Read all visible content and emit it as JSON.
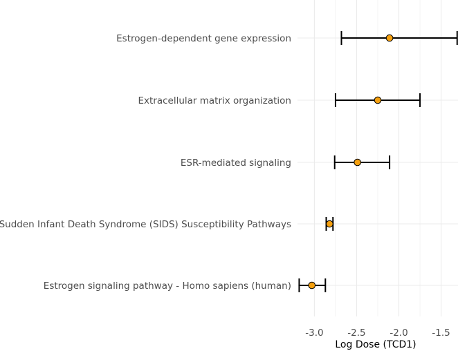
{
  "chart_data": {
    "type": "forest",
    "xlabel": "Log Dose (TCD1)",
    "ylabel": "",
    "title": "",
    "xlim": [
      -3.2,
      -1.3
    ],
    "xticks": [
      -3.0,
      -2.5,
      -2.0,
      -1.5
    ],
    "xtick_labels": [
      "-3.0",
      "-2.5",
      "-2.0",
      "-1.5"
    ],
    "grid": true,
    "legend": "none",
    "colors": {
      "point_fill": "#F5A00F",
      "point_stroke": "#000000",
      "errorbar": "#000000",
      "grid": "#EBEBEB"
    },
    "categories": [
      "Estrogen-dependent gene expression",
      "Extracellular matrix organization",
      "ESR-mediated signaling",
      "Sudden Infant Death Syndrome (SIDS) Susceptibility Pathways",
      "Estrogen signaling pathway - Homo sapiens (human)"
    ],
    "estimate": [
      -2.11,
      -2.25,
      -2.49,
      -2.82,
      -3.03
    ],
    "lower": [
      -2.68,
      -2.75,
      -2.76,
      -2.86,
      -3.18
    ],
    "upper": [
      -1.31,
      -1.75,
      -2.11,
      -2.78,
      -2.87
    ]
  }
}
